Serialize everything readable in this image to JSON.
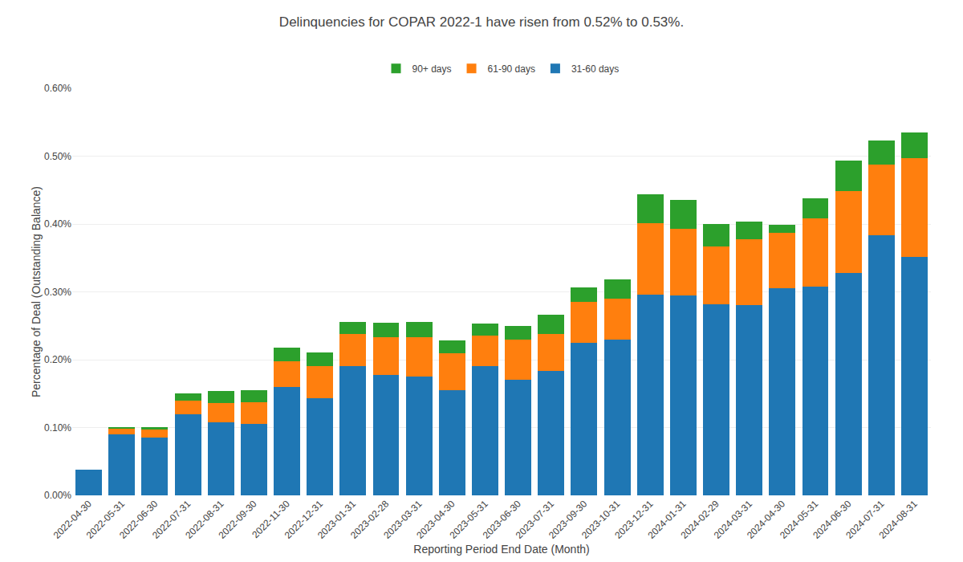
{
  "chart_data": {
    "type": "bar",
    "title": "Delinquencies for COPAR 2022-1 have risen from 0.52% to 0.53%.",
    "x_label": "Reporting Period End Date (Month)",
    "y_label": "Percentage of Deal (Outstanding Balance)",
    "categories": [
      "2022-04-30",
      "2022-05-31",
      "2022-06-30",
      "2022-07-31",
      "2022-08-31",
      "2022-09-30",
      "2022-11-30",
      "2022-12-31",
      "2023-01-31",
      "2023-02-28",
      "2023-03-31",
      "2023-04-30",
      "2023-05-31",
      "2023-06-30",
      "2023-07-31",
      "2023-09-30",
      "2023-10-31",
      "2023-12-31",
      "2024-01-31",
      "2024-02-29",
      "2024-03-31",
      "2024-04-30",
      "2024-05-31",
      "2024-06-30",
      "2024-07-31",
      "2024-08-31"
    ],
    "series": [
      {
        "name": "31-60 days",
        "values": [
          0.00038,
          0.0009,
          0.00085,
          0.0012,
          0.00108,
          0.00105,
          0.0016,
          0.00143,
          0.0019,
          0.00178,
          0.00175,
          0.00155,
          0.0019,
          0.0017,
          0.00183,
          0.00225,
          0.0023,
          0.00296,
          0.00295,
          0.00282,
          0.0028,
          0.00305,
          0.00308,
          0.00328,
          0.00383,
          0.00352
        ]
      },
      {
        "name": "61-90 days",
        "values": [
          0.0,
          8e-05,
          0.00012,
          0.0002,
          0.00028,
          0.00032,
          0.00038,
          0.00048,
          0.00048,
          0.00055,
          0.00058,
          0.00055,
          0.00045,
          0.0006,
          0.00055,
          0.0006,
          0.0006,
          0.00105,
          0.00098,
          0.00085,
          0.00098,
          0.00082,
          0.001,
          0.0012,
          0.00105,
          0.00145
        ]
      },
      {
        "name": "90+ days",
        "values": [
          0.0,
          3e-05,
          4e-05,
          0.0001,
          0.00018,
          0.00018,
          0.0002,
          0.0002,
          0.00018,
          0.00022,
          0.00023,
          0.00018,
          0.00018,
          0.0002,
          0.00028,
          0.00022,
          0.00028,
          0.00043,
          0.00042,
          0.00033,
          0.00025,
          0.00012,
          0.0003,
          0.00045,
          0.00035,
          0.00038
        ]
      }
    ],
    "stacked": true,
    "ylim": [
      0,
      0.006
    ],
    "yticks": [
      {
        "value": 0,
        "label": "0.00%"
      },
      {
        "value": 0.001,
        "label": "0.10%"
      },
      {
        "value": 0.002,
        "label": "0.20%"
      },
      {
        "value": 0.003,
        "label": "0.30%"
      },
      {
        "value": 0.004,
        "label": "0.40%"
      },
      {
        "value": 0.005,
        "label": "0.50%"
      },
      {
        "value": 0.006,
        "label": "0.60%"
      }
    ],
    "grid": true,
    "legend": "top"
  }
}
